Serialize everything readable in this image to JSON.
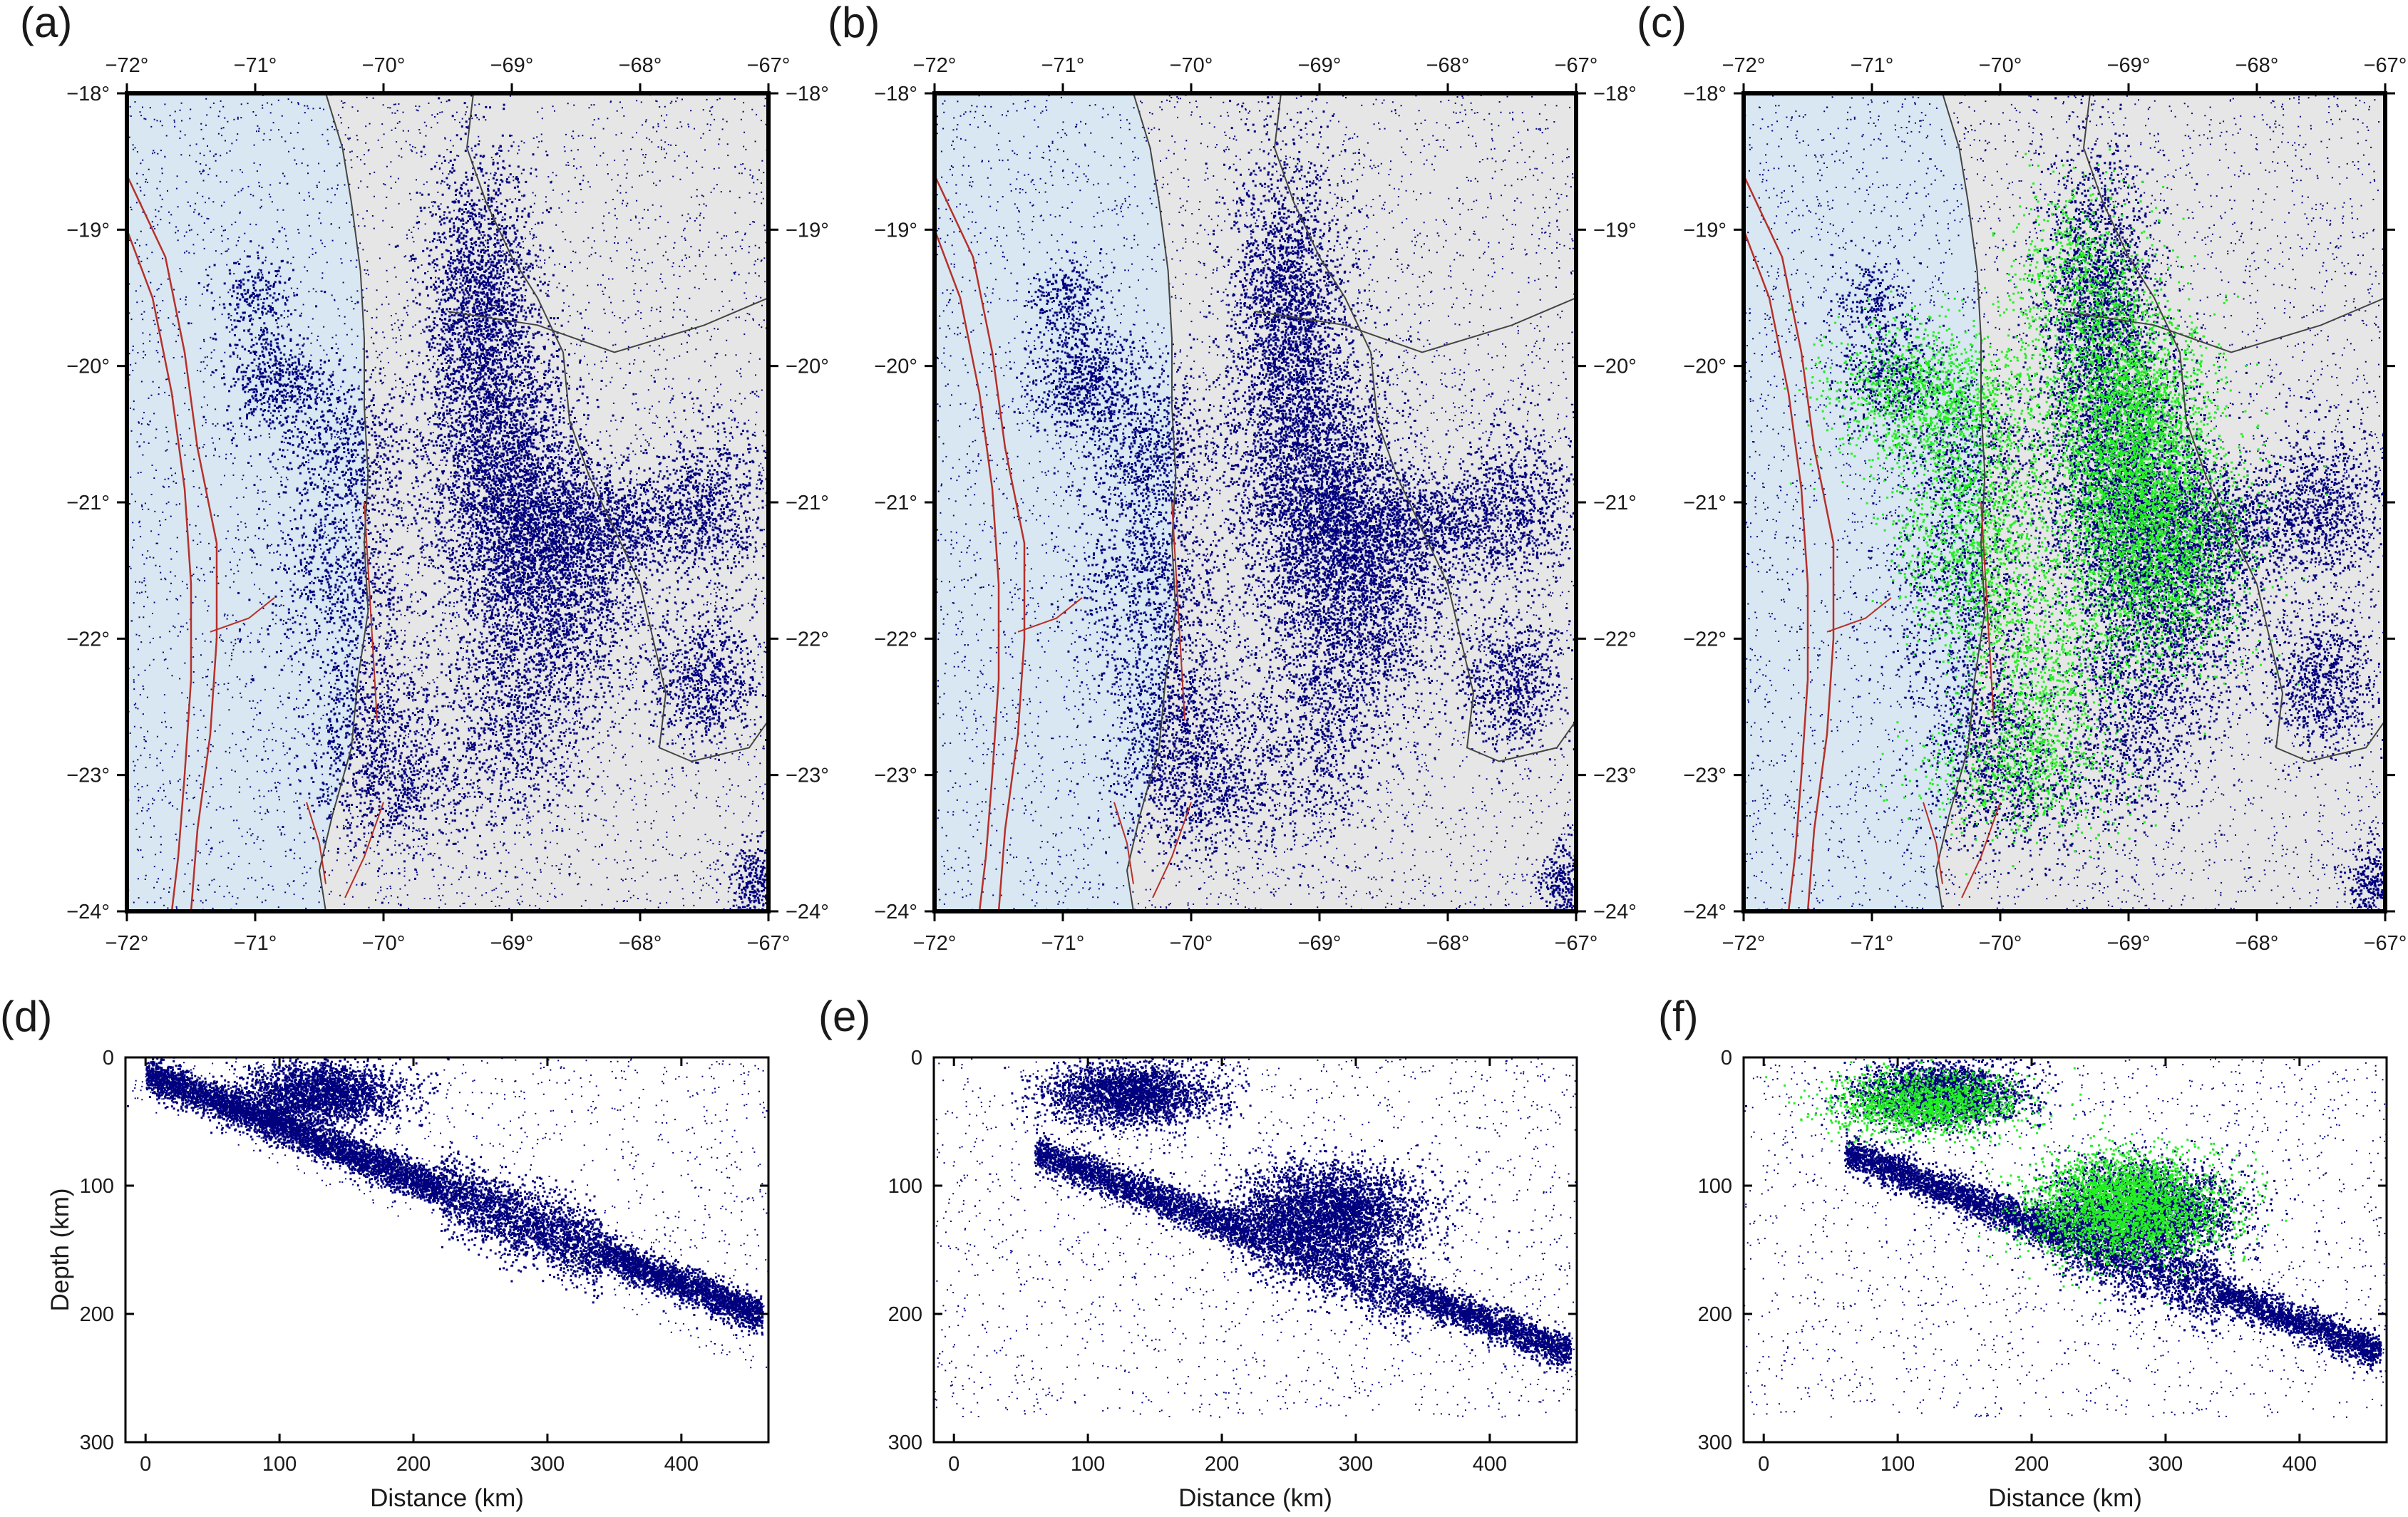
{
  "figure": {
    "map_panels": [
      {
        "letter": "(a)",
        "overlay": false
      },
      {
        "letter": "(b)",
        "overlay": false
      },
      {
        "letter": "(c)",
        "overlay": true
      }
    ],
    "section_panels": [
      {
        "letter": "(d)",
        "overlay": false,
        "show_depth_title": true
      },
      {
        "letter": "(e)",
        "overlay": false,
        "show_depth_title": false
      },
      {
        "letter": "(f)",
        "overlay": true,
        "show_depth_title": false
      }
    ],
    "lon_ticks": [
      "−72°",
      "−71°",
      "−70°",
      "−69°",
      "−68°",
      "−67°"
    ],
    "lat_ticks": [
      "−18°",
      "−19°",
      "−20°",
      "−21°",
      "−22°",
      "−23°",
      "−24°"
    ],
    "lon_range": [
      -72,
      -67
    ],
    "lat_range": [
      -24,
      -18
    ],
    "distance_ticks": [
      "0",
      "100",
      "200",
      "300",
      "400"
    ],
    "depth_ticks": [
      "0",
      "100",
      "200",
      "300"
    ],
    "distance_range": [
      -15,
      465
    ],
    "depth_range": [
      0,
      300
    ],
    "distance_title": "Distance (km)",
    "depth_title": "Depth (km)",
    "colors": {
      "seismicity": "#00007f",
      "overlay": "#22ee22",
      "trench": "#b5302a",
      "border": "#444444",
      "frame": "#000000",
      "relief_land": "#e6e6e6",
      "relief_ocean": "#d8e7f1"
    }
  }
}
